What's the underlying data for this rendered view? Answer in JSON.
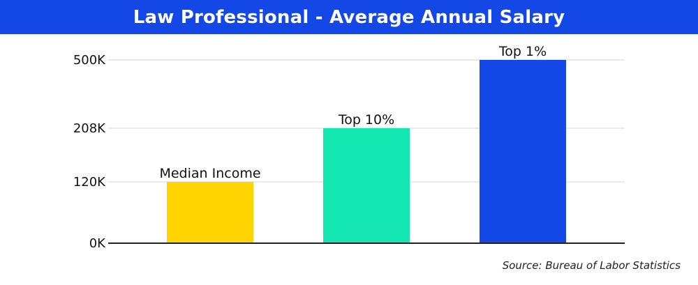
{
  "title": "Law Professional - Average Annual Salary",
  "source": "Source: Bureau of Labor Statistics",
  "colors": {
    "header": "#1347e6",
    "median": "#ffd400",
    "top10": "#13e6b0",
    "top1": "#1347e6"
  },
  "chart_data": {
    "type": "bar",
    "title": "Law Professional - Average Annual Salary",
    "categories": [
      "Median Income",
      "Top 10%",
      "Top 1%"
    ],
    "values": [
      120000,
      208000,
      500000
    ],
    "colors": [
      "#ffd400",
      "#13e6b0",
      "#1347e6"
    ],
    "y_ticks": [
      0,
      120000,
      208000,
      500000
    ],
    "y_tick_labels": [
      "0K",
      "120K",
      "208K",
      "500K"
    ],
    "ylim": [
      0,
      500000
    ],
    "grid": true,
    "xlabel": "",
    "ylabel": "",
    "note": "y-axis is non-linear: tick positions are evenly uneven as drawn"
  }
}
